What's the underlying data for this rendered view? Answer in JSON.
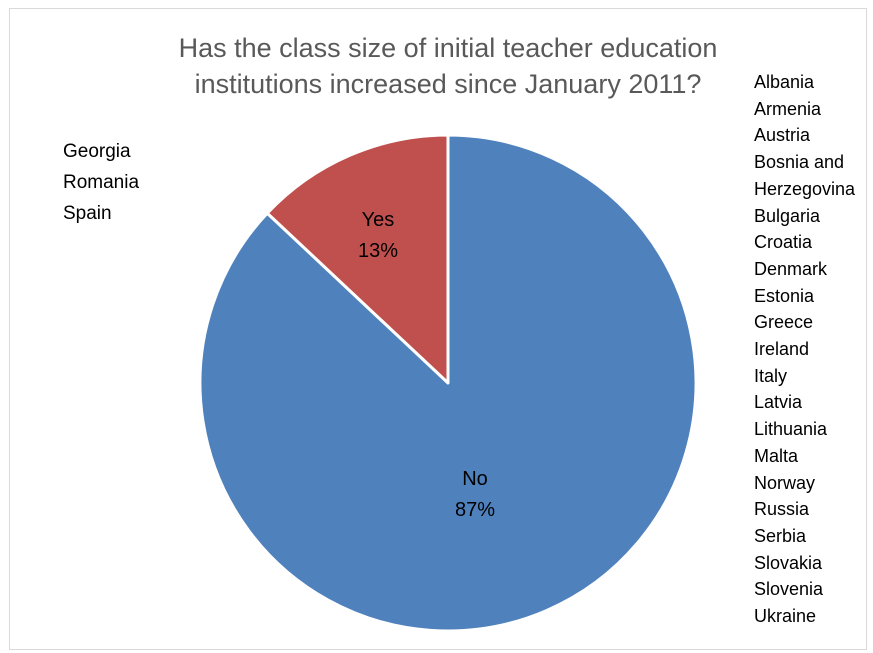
{
  "chart_data": {
    "type": "pie",
    "title": "Has the class size of initial teacher education institutions increased since January 2011?",
    "title_lines": [
      "Has the class size of initial teacher education",
      "institutions increased since January 2011?"
    ],
    "slices": [
      {
        "label": "Yes",
        "percent_label": "13%",
        "value": 13,
        "color": "#c0504d"
      },
      {
        "label": "No",
        "percent_label": "87%",
        "value": 87,
        "color": "#4f81bd"
      }
    ],
    "annotations": {
      "yes_countries": [
        "Georgia",
        "Romania",
        "Spain"
      ],
      "no_countries": [
        "Albania",
        "Armenia",
        "Austria",
        "Bosnia and",
        "Herzegovina",
        "Bulgaria",
        "Croatia",
        "Denmark",
        "Estonia",
        "Greece",
        "Ireland",
        "Italy",
        "Latvia",
        "Lithuania",
        "Malta",
        "Norway",
        "Russia",
        "Serbia",
        "Slovakia",
        "Slovenia",
        "Ukraine"
      ]
    },
    "legend": "none"
  },
  "colors": {
    "title": "#595959",
    "border": "#d9d9d9",
    "slice_edge": "#ffffff"
  }
}
